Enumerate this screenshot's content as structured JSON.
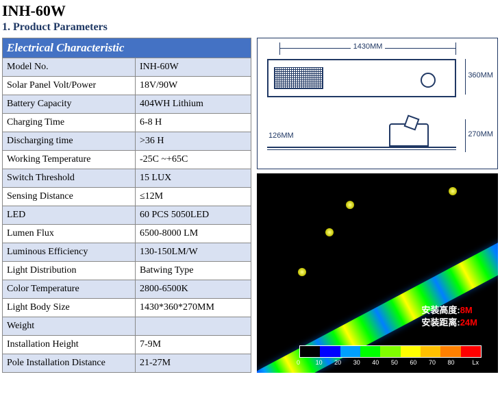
{
  "title": "INH-60W",
  "subtitle": "1. Product Parameters",
  "spec_header": "Electrical Characteristic",
  "specs": [
    {
      "label": "Model No.",
      "value": "INH-60W"
    },
    {
      "label": "Solar Panel Volt/Power",
      "value": "18V/90W"
    },
    {
      "label": "Battery Capacity",
      "value": "404WH Lithium"
    },
    {
      "label": "Charging Time",
      "value": "6-8 H"
    },
    {
      "label": "Discharging time",
      "value": ">36 H"
    },
    {
      "label": "Working Temperature",
      "value": "-25C ~+65C"
    },
    {
      "label": "Switch Threshold",
      "value": "15 LUX"
    },
    {
      "label": "Sensing Distance",
      "value": "≤12M"
    },
    {
      "label": "LED",
      "value": "60 PCS 5050LED"
    },
    {
      "label": "Lumen Flux",
      "value": "6500-8000 LM"
    },
    {
      "label": "Luminous Efficiency",
      "value": "130-150LM/W"
    },
    {
      "label": "Light Distribution",
      "value": "Batwing Type"
    },
    {
      "label": "Color Temperature",
      "value": "2800-6500K"
    },
    {
      "label": "Light Body Size",
      "value": "1430*360*270MM"
    },
    {
      "label": "Weight",
      "value": ""
    },
    {
      "label": "Installation Height",
      "value": "7-9M"
    },
    {
      "label": "Pole Installation Distance",
      "value": "21-27M"
    }
  ],
  "drawing": {
    "width": "1430MM",
    "height1": "360MM",
    "height2": "270MM",
    "thickness": "126MM"
  },
  "heatmap": {
    "line1_label": "安装高度:",
    "line1_value": "8M",
    "line2_label": "安装距离:",
    "line2_value": "24M",
    "legend_colors": [
      "#000000",
      "#0000ff",
      "#00a0ff",
      "#00ff00",
      "#80ff00",
      "#ffff00",
      "#ffc000",
      "#ff8000",
      "#ff0000"
    ],
    "legend_ticks": [
      "0",
      "10",
      "20",
      "30",
      "40",
      "50",
      "60",
      "70",
      "80"
    ],
    "legend_unit": "Lx"
  }
}
